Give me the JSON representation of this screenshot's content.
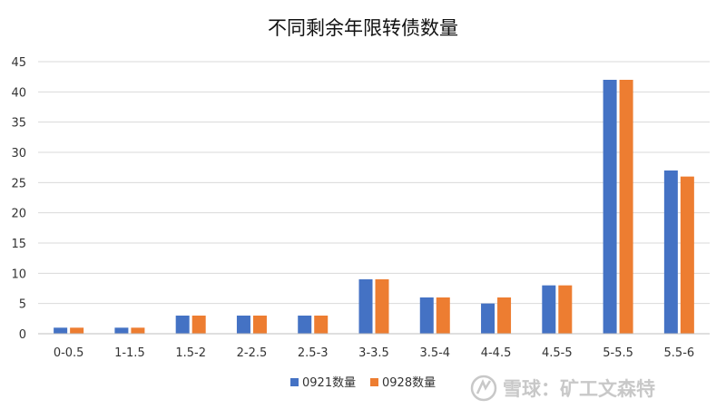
{
  "chart_data": {
    "type": "bar",
    "title": "不同剩余年限转债数量",
    "categories": [
      "0-0.5",
      "1-1.5",
      "1.5-2",
      "2-2.5",
      "2.5-3",
      "3-3.5",
      "3.5-4",
      "4-4.5",
      "4.5-5",
      "5-5.5",
      "5.5-6"
    ],
    "series": [
      {
        "name": "0921数量",
        "color": "#4472C4",
        "values": [
          1,
          1,
          3,
          3,
          3,
          9,
          6,
          5,
          8,
          42,
          27
        ]
      },
      {
        "name": "0928数量",
        "color": "#ED7D31",
        "values": [
          1,
          1,
          3,
          3,
          3,
          9,
          6,
          6,
          8,
          42,
          26
        ]
      }
    ],
    "ylim": [
      0,
      45
    ],
    "yticks": [
      0,
      5,
      10,
      15,
      20,
      25,
      30,
      35,
      40,
      45
    ],
    "grid": true,
    "legend": "bottom",
    "gridline_color": "#d9d9d9"
  },
  "watermark": {
    "text": "雪球：矿工文森特",
    "icon": "snowball-logo-icon"
  }
}
